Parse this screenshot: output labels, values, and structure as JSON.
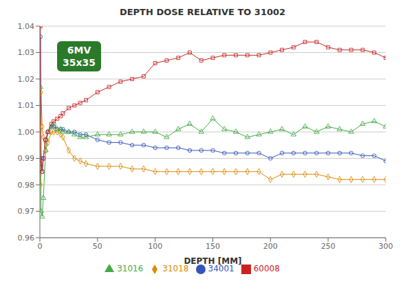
{
  "chart_data": {
    "type": "line",
    "title": "DEPTH DOSE RELATIVE TO 31002",
    "xlabel": "DEPTH [MM]",
    "x": [
      0.5,
      1,
      2,
      3,
      5,
      7,
      10,
      12,
      15,
      18,
      20,
      25,
      30,
      35,
      40,
      50,
      60,
      70,
      80,
      90,
      100,
      110,
      120,
      130,
      140,
      150,
      160,
      170,
      180,
      190,
      200,
      210,
      220,
      230,
      240,
      250,
      260,
      270,
      280,
      290,
      300
    ],
    "series": [
      {
        "name": "31018",
        "color": "#dd8800",
        "marker": "diamond",
        "values": [
          0.98,
          1.015,
          1.002,
          0.998,
          0.993,
          0.996,
          1.0,
          1.0,
          1.0,
          0.999,
          0.998,
          0.993,
          0.99,
          0.989,
          0.988,
          0.987,
          0.987,
          0.987,
          0.986,
          0.986,
          0.985,
          0.985,
          0.985,
          0.985,
          0.985,
          0.985,
          0.985,
          0.985,
          0.985,
          0.985,
          0.982,
          0.984,
          0.984,
          0.984,
          0.984,
          0.983,
          0.982,
          0.982,
          0.982,
          0.982,
          0.982
        ]
      },
      {
        "name": "34001",
        "color": "#3355bb",
        "marker": "circle",
        "values": [
          1.036,
          0.99,
          0.985,
          0.99,
          0.997,
          1.0,
          1.002,
          1.002,
          1.001,
          1.001,
          1.001,
          1.0,
          1.0,
          0.999,
          0.999,
          0.997,
          0.996,
          0.996,
          0.995,
          0.995,
          0.994,
          0.994,
          0.994,
          0.993,
          0.993,
          0.993,
          0.992,
          0.992,
          0.992,
          0.992,
          0.99,
          0.992,
          0.992,
          0.992,
          0.992,
          0.992,
          0.992,
          0.992,
          0.991,
          0.991,
          0.989
        ]
      },
      {
        "name": "31016",
        "color": "#44aa44",
        "marker": "triangle",
        "values": [
          1.017,
          0.97,
          0.968,
          0.975,
          0.993,
          1.0,
          1.002,
          1.003,
          1.001,
          1.001,
          1.0,
          1.0,
          0.999,
          0.998,
          0.998,
          0.999,
          0.999,
          0.999,
          1.0,
          1.0,
          1.0,
          0.998,
          1.001,
          1.003,
          1.0,
          1.005,
          1.001,
          1.0,
          0.998,
          0.999,
          1.0,
          1.001,
          0.999,
          1.002,
          1.0,
          1.002,
          1.001,
          1.0,
          1.003,
          1.004,
          1.002
        ]
      },
      {
        "name": "60008",
        "color": "#cc2222",
        "marker": "square",
        "values": [
          1.04,
          0.988,
          0.985,
          0.99,
          0.997,
          1.0,
          1.003,
          1.004,
          1.005,
          1.006,
          1.007,
          1.009,
          1.01,
          1.011,
          1.012,
          1.015,
          1.017,
          1.019,
          1.02,
          1.021,
          1.026,
          1.027,
          1.028,
          1.03,
          1.027,
          1.028,
          1.029,
          1.029,
          1.029,
          1.029,
          1.03,
          1.031,
          1.032,
          1.034,
          1.034,
          1.032,
          1.031,
          1.031,
          1.031,
          1.03,
          1.028
        ]
      }
    ],
    "xlim": [
      0,
      300
    ],
    "xticks": [
      0,
      50,
      100,
      150,
      200,
      250,
      300
    ],
    "ylim": [
      0.96,
      1.04
    ],
    "yticks": [
      0.96,
      0.97,
      0.98,
      0.99,
      {
        "value": 1,
        "label": "1.00"
      },
      1.01,
      1.02,
      1.03,
      1.04
    ],
    "grid": "y",
    "legend": "bottom",
    "annotations": [
      {
        "text": "6MV\n35x35",
        "color": "#2a7a2a"
      }
    ]
  }
}
